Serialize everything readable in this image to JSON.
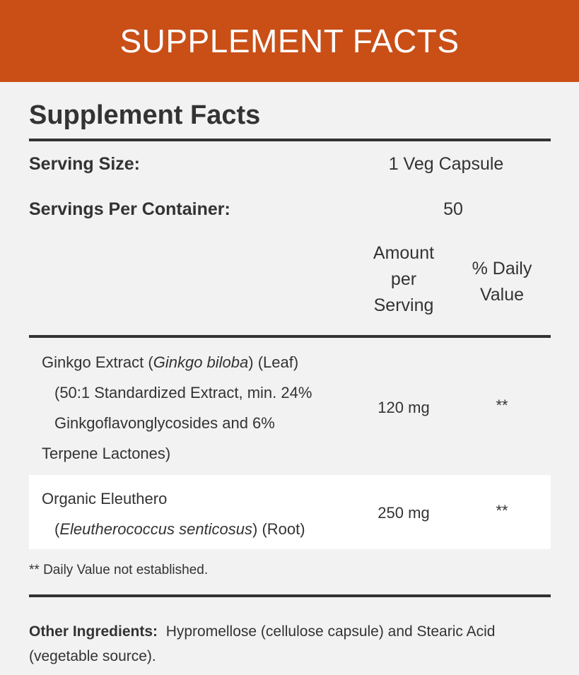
{
  "banner": "SUPPLEMENT FACTS",
  "title": "Supplement Facts",
  "serving_size_label": "Serving Size:",
  "serving_size": "1 Veg Capsule",
  "servings_label": "Servings Per Container:",
  "servings": "50",
  "col_amount": "Amount per Serving",
  "col_dv": "% Daily Value",
  "rows": [
    {
      "name_pre": "Ginkgo Extract (",
      "name_italic": "Ginkgo biloba",
      "name_post": ") (Leaf)",
      "detail1": "(50:1 Standardized Extract, min. 24%",
      "detail2": "Ginkgoflavonglycosides and 6%",
      "detail3": "Terpene Lactones)",
      "amount": "120 mg",
      "dv": "**"
    },
    {
      "name": "Organic Eleuthero",
      "detail_pre": "(",
      "detail_italic": "Eleutherococcus senticosus",
      "detail_post": ") (Root)",
      "amount": "250 mg",
      "dv": "**"
    }
  ],
  "footnote": "** Daily Value not established.",
  "other_label": "Other Ingredients:",
  "other_text": "Hypromellose (cellulose capsule) and Stearic Acid (vegetable source)."
}
